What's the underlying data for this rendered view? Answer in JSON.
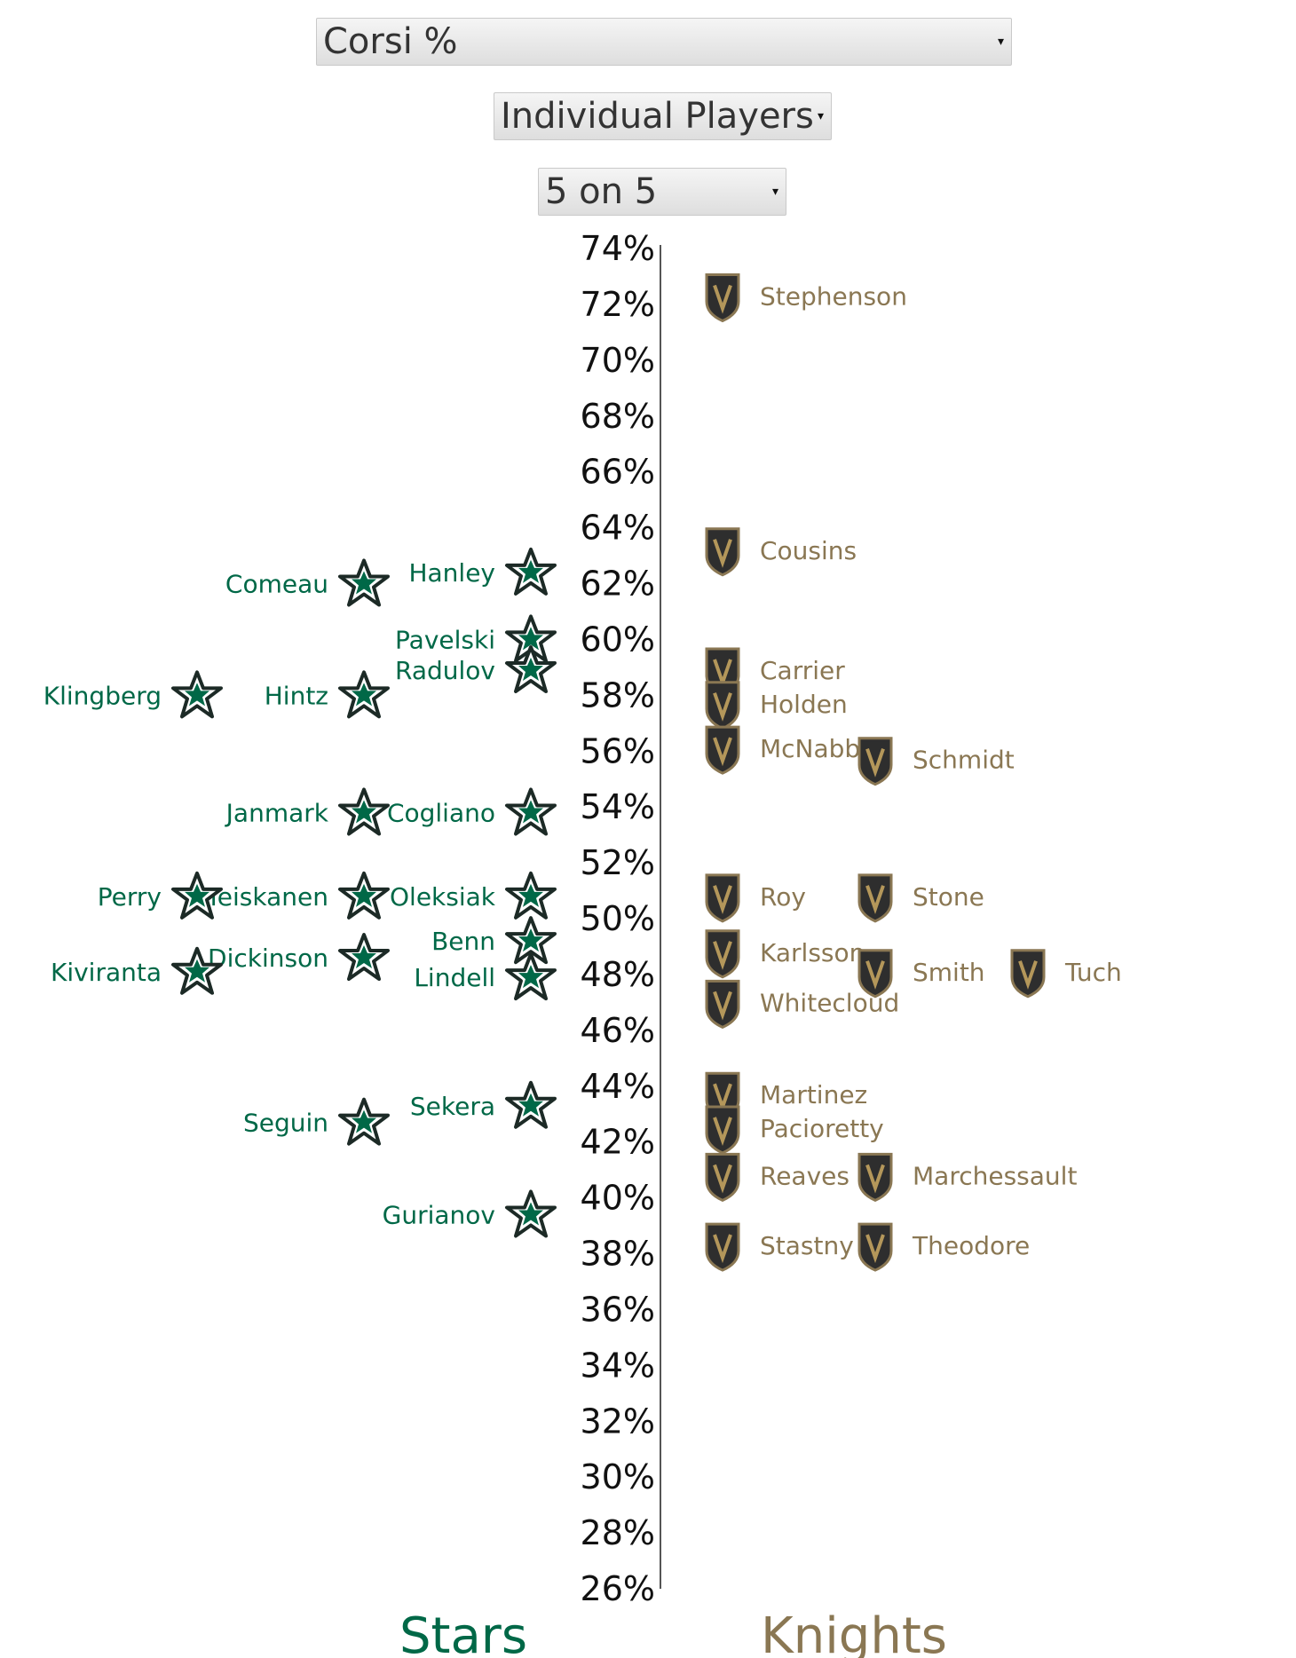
{
  "controls": {
    "stat_select": "Corsi %",
    "mode_select": "Individual Players",
    "situation_select": "5 on 5",
    "dropdown_arrow": "▾"
  },
  "colors": {
    "stars": "#006847",
    "knights": "#8a7753",
    "axis": "#555555"
  },
  "chart_data": {
    "type": "scatter",
    "ylim": [
      26,
      74
    ],
    "y_tick_step": 2,
    "y_tick_format": "%",
    "team_labels": {
      "left": "Stars",
      "right": "Knights"
    },
    "series": [
      {
        "name": "Stars",
        "icon": "dallas-star-icon",
        "points": [
          {
            "player": "Hanley",
            "value": 62.4
          },
          {
            "player": "Comeau",
            "value": 62.0
          },
          {
            "player": "Pavelski",
            "value": 60.0
          },
          {
            "player": "Radulov",
            "value": 58.9
          },
          {
            "player": "Hintz",
            "value": 58.0
          },
          {
            "player": "Klingberg",
            "value": 58.0
          },
          {
            "player": "Cogliano",
            "value": 53.8
          },
          {
            "player": "Janmark",
            "value": 53.8
          },
          {
            "player": "Oleksiak",
            "value": 50.8
          },
          {
            "player": "Heiskanen",
            "value": 50.8
          },
          {
            "player": "Perry",
            "value": 50.8
          },
          {
            "player": "Benn",
            "value": 49.2
          },
          {
            "player": "Dickinson",
            "value": 48.6
          },
          {
            "player": "Lindell",
            "value": 47.9
          },
          {
            "player": "Kiviranta",
            "value": 48.1
          },
          {
            "player": "Sekera",
            "value": 43.3
          },
          {
            "player": "Seguin",
            "value": 42.7
          },
          {
            "player": "Gurianov",
            "value": 39.4
          }
        ]
      },
      {
        "name": "Knights",
        "icon": "vegas-knight-helmet-icon",
        "points": [
          {
            "player": "Stephenson",
            "value": 72.3
          },
          {
            "player": "Cousins",
            "value": 63.2
          },
          {
            "player": "Carrier",
            "value": 58.9
          },
          {
            "player": "Holden",
            "value": 57.7
          },
          {
            "player": "McNabb",
            "value": 56.1
          },
          {
            "player": "Schmidt",
            "value": 55.7
          },
          {
            "player": "Roy",
            "value": 50.8
          },
          {
            "player": "Stone",
            "value": 50.8
          },
          {
            "player": "Karlsson",
            "value": 48.8
          },
          {
            "player": "Smith",
            "value": 48.1
          },
          {
            "player": "Tuch",
            "value": 48.1
          },
          {
            "player": "Whitecloud",
            "value": 47.0
          },
          {
            "player": "Martinez",
            "value": 43.7
          },
          {
            "player": "Pacioretty",
            "value": 42.5
          },
          {
            "player": "Reaves",
            "value": 40.8
          },
          {
            "player": "Marchessault",
            "value": 40.8
          },
          {
            "player": "Stastny",
            "value": 38.3
          },
          {
            "player": "Theodore",
            "value": 38.3
          }
        ]
      }
    ]
  }
}
